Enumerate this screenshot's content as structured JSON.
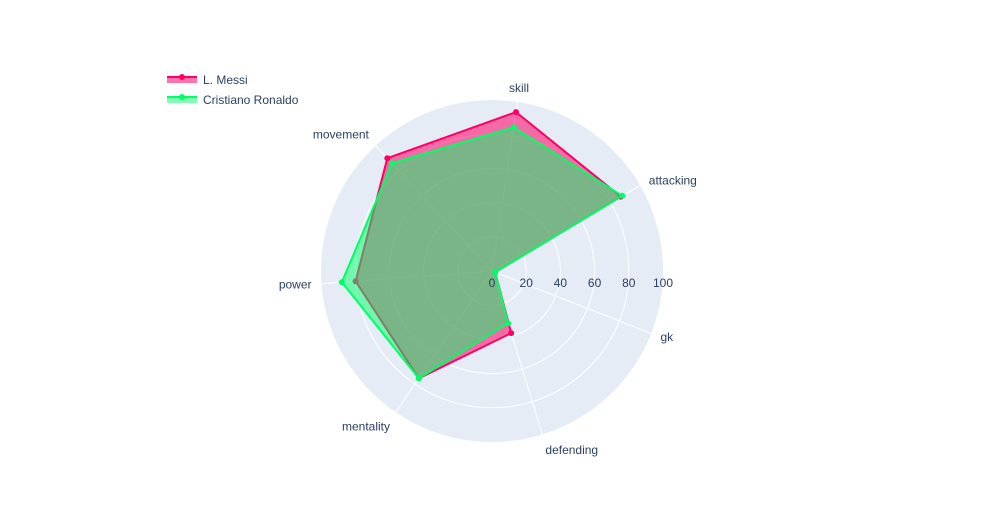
{
  "chart_data": {
    "type": "radar",
    "title": "",
    "categories": [
      "attacking",
      "skill",
      "movement",
      "power",
      "mentality",
      "defending",
      "gk"
    ],
    "radial_range": [
      0,
      100
    ],
    "radial_ticks": [
      0,
      20,
      40,
      60,
      80,
      100
    ],
    "grid": true,
    "legend_position": "top-left",
    "series": [
      {
        "name": "L. Messi",
        "values": [
          87,
          94,
          90,
          80,
          76,
          38,
          2
        ],
        "color": "#ff0066",
        "fill": "rgba(255,0,102,0.55)"
      },
      {
        "name": "Cristiano Ronaldo",
        "values": [
          88,
          85,
          86,
          88,
          76,
          32,
          2
        ],
        "color": "#00ff66",
        "fill": "rgba(0,255,102,0.5)"
      }
    ],
    "colors": {
      "polar_bg": "#e5ecf6",
      "grid": "#ffffff",
      "text": "#2a3f5f"
    }
  }
}
